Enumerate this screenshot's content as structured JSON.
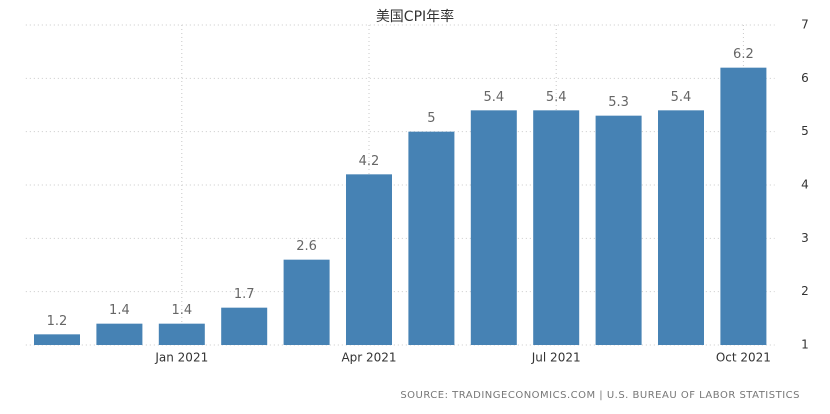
{
  "chart_data": {
    "type": "bar",
    "title": "美国CPI年率",
    "categories": [
      null,
      null,
      "Jan 2021",
      null,
      null,
      "Apr 2021",
      null,
      null,
      "Jul 2021",
      null,
      null,
      "Oct 2021"
    ],
    "values": [
      1.2,
      1.4,
      1.4,
      1.7,
      2.6,
      4.2,
      5,
      5.4,
      5.4,
      5.3,
      5.4,
      6.2
    ],
    "color": "#4682b4",
    "ylim": [
      1,
      7
    ],
    "yticks": [
      1,
      2,
      3,
      4,
      5,
      6,
      7
    ],
    "grid": true,
    "source": "SOURCE: TRADINGECONOMICS.COM | U.S. BUREAU OF LABOR STATISTICS"
  }
}
